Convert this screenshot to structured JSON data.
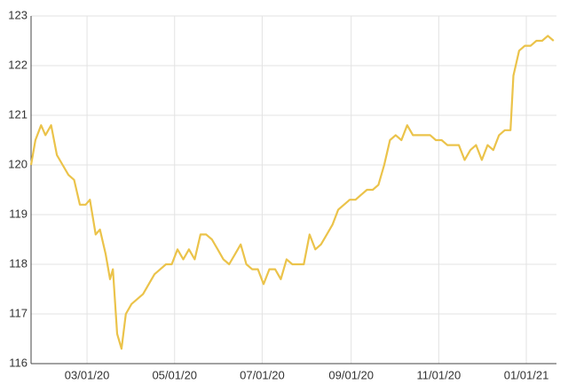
{
  "chart_data": {
    "type": "line",
    "x": [
      "2020-01-22",
      "2020-01-25",
      "2020-01-29",
      "2020-02-01",
      "2020-02-05",
      "2020-02-09",
      "2020-02-13",
      "2020-02-17",
      "2020-02-21",
      "2020-02-25",
      "2020-02-29",
      "2020-03-03",
      "2020-03-07",
      "2020-03-10",
      "2020-03-14",
      "2020-03-17",
      "2020-03-19",
      "2020-03-22",
      "2020-03-25",
      "2020-03-28",
      "2020-04-01",
      "2020-04-05",
      "2020-04-09",
      "2020-04-13",
      "2020-04-17",
      "2020-04-21",
      "2020-04-25",
      "2020-04-29",
      "2020-05-03",
      "2020-05-07",
      "2020-05-11",
      "2020-05-15",
      "2020-05-19",
      "2020-05-23",
      "2020-05-27",
      "2020-05-31",
      "2020-06-04",
      "2020-06-08",
      "2020-06-12",
      "2020-06-16",
      "2020-06-20",
      "2020-06-24",
      "2020-06-28",
      "2020-07-02",
      "2020-07-06",
      "2020-07-10",
      "2020-07-14",
      "2020-07-18",
      "2020-07-22",
      "2020-07-26",
      "2020-07-30",
      "2020-08-03",
      "2020-08-07",
      "2020-08-11",
      "2020-08-15",
      "2020-08-19",
      "2020-08-23",
      "2020-08-27",
      "2020-08-31",
      "2020-09-04",
      "2020-09-08",
      "2020-09-12",
      "2020-09-16",
      "2020-09-20",
      "2020-09-24",
      "2020-09-28",
      "2020-10-02",
      "2020-10-06",
      "2020-10-10",
      "2020-10-14",
      "2020-10-18",
      "2020-10-22",
      "2020-10-26",
      "2020-10-30",
      "2020-11-03",
      "2020-11-07",
      "2020-11-11",
      "2020-11-15",
      "2020-11-19",
      "2020-11-23",
      "2020-11-27",
      "2020-12-01",
      "2020-12-05",
      "2020-12-09",
      "2020-12-13",
      "2020-12-17",
      "2020-12-21",
      "2020-12-23",
      "2020-12-27",
      "2020-12-31",
      "2021-01-04",
      "2021-01-08",
      "2021-01-12",
      "2021-01-16",
      "2021-01-20"
    ],
    "series": [
      {
        "color": "#ebc34a",
        "values": [
          120.0,
          120.5,
          120.8,
          120.6,
          120.8,
          120.2,
          120.0,
          119.8,
          119.7,
          119.2,
          119.2,
          119.3,
          118.6,
          118.7,
          118.2,
          117.7,
          117.9,
          116.6,
          116.3,
          117.0,
          117.2,
          117.3,
          117.4,
          117.6,
          117.8,
          117.9,
          118.0,
          118.0,
          118.3,
          118.1,
          118.3,
          118.1,
          118.6,
          118.6,
          118.5,
          118.3,
          118.1,
          118.0,
          118.2,
          118.4,
          118.0,
          117.9,
          117.9,
          117.6,
          117.9,
          117.9,
          117.7,
          118.1,
          118.0,
          118.0,
          118.0,
          118.6,
          118.3,
          118.4,
          118.6,
          118.8,
          119.1,
          119.2,
          119.3,
          119.3,
          119.4,
          119.5,
          119.5,
          119.6,
          120.0,
          120.5,
          120.6,
          120.5,
          120.8,
          120.6,
          120.6,
          120.6,
          120.6,
          120.5,
          120.5,
          120.4,
          120.4,
          120.4,
          120.1,
          120.3,
          120.4,
          120.1,
          120.4,
          120.3,
          120.6,
          120.7,
          120.7,
          121.8,
          122.3,
          122.4,
          122.4,
          122.5,
          122.5,
          122.6,
          122.5
        ]
      }
    ],
    "xlim": [
      "2020-01-22",
      "2021-01-22"
    ],
    "xticks": [
      {
        "value": "2020-03-01",
        "label": "03/01/20"
      },
      {
        "value": "2020-05-01",
        "label": "05/01/20"
      },
      {
        "value": "2020-07-01",
        "label": "07/01/20"
      },
      {
        "value": "2020-09-01",
        "label": "09/01/20"
      },
      {
        "value": "2020-11-01",
        "label": "11/01/20"
      },
      {
        "value": "2021-01-01",
        "label": "01/01/21"
      }
    ],
    "ylim": [
      116,
      123
    ],
    "yticks": [
      116,
      117,
      118,
      119,
      120,
      121,
      122,
      123
    ],
    "grid": true
  }
}
